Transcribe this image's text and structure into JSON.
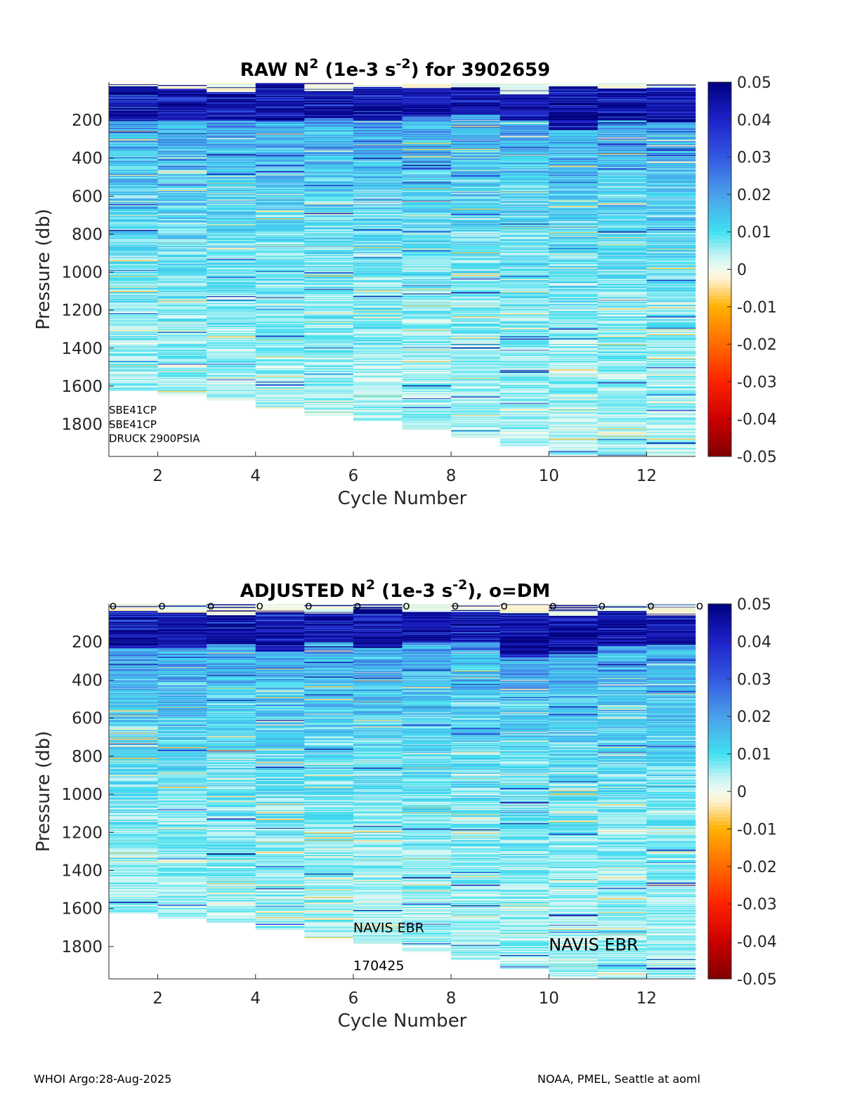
{
  "figure": {
    "footer_left": "WHOI Argo:28-Aug-2025",
    "footer_right": "NOAA, PMEL, Seattle at aoml"
  },
  "colors": {
    "cmap_stops": [
      {
        "v": -0.05,
        "c": "#7f0000"
      },
      {
        "v": -0.04,
        "c": "#cc0000"
      },
      {
        "v": -0.03,
        "c": "#ff2200"
      },
      {
        "v": -0.02,
        "c": "#ff6a00"
      },
      {
        "v": -0.01,
        "c": "#ffb000"
      },
      {
        "v": -0.003,
        "c": "#fff0c8"
      },
      {
        "v": 0.0,
        "c": "#f4fbf0"
      },
      {
        "v": 0.004,
        "c": "#bff3f3"
      },
      {
        "v": 0.01,
        "c": "#40e0f0"
      },
      {
        "v": 0.02,
        "c": "#4aa0ea"
      },
      {
        "v": 0.03,
        "c": "#3358e0"
      },
      {
        "v": 0.04,
        "c": "#1e22c8"
      },
      {
        "v": 0.05,
        "c": "#000080"
      }
    ]
  },
  "chart_data": [
    {
      "type": "heatmap",
      "title_prefix": "RAW N",
      "title_sup1": "2",
      "title_mid": " (1e-3 s",
      "title_sup2": "-2",
      "title_suffix": ") for 3902659",
      "xlabel": "Cycle Number",
      "ylabel": "Pressure (db)",
      "xlim": [
        1,
        13
      ],
      "ylim": [
        1970,
        0
      ],
      "xticks": [
        2,
        4,
        6,
        8,
        10,
        12
      ],
      "yticks": [
        200,
        400,
        600,
        800,
        1000,
        1200,
        1400,
        1600,
        1800
      ],
      "clim": [
        -0.05,
        0.05
      ],
      "cticks": [
        0.05,
        0.04,
        0.03,
        0.02,
        0.01,
        0,
        -0.01,
        -0.02,
        -0.03,
        -0.04,
        -0.05
      ],
      "cycles": [
        1,
        2,
        3,
        4,
        5,
        6,
        7,
        8,
        9,
        10,
        11,
        12
      ],
      "top_pressure": [
        5,
        15,
        5,
        5,
        5,
        15,
        5,
        5,
        5,
        5,
        5,
        5
      ],
      "max_pressure": [
        1625,
        1650,
        1675,
        1715,
        1755,
        1785,
        1830,
        1870,
        1915,
        1960,
        1965,
        1965
      ],
      "surface_layer_bottom": [
        25,
        30,
        50,
        5,
        50,
        20,
        30,
        40,
        60,
        20,
        30,
        25
      ],
      "strong_layer_bottom": [
        200,
        200,
        200,
        200,
        190,
        200,
        180,
        170,
        200,
        250,
        200,
        210
      ],
      "dm_markers": false,
      "annotations": [
        {
          "text": "SBE41CP",
          "x": 1,
          "y": 1725,
          "size": 15
        },
        {
          "text": "SBE41CP",
          "x": 1,
          "y": 1800,
          "size": 15
        },
        {
          "text": "DRUCK 2900PSIA",
          "x": 1,
          "y": 1875,
          "size": 15
        }
      ]
    },
    {
      "type": "heatmap",
      "title_prefix": "ADJUSTED N",
      "title_sup1": "2",
      "title_mid": " (1e-3 s",
      "title_sup2": "-2",
      "title_suffix": "), o=DM",
      "xlabel": "Cycle Number",
      "ylabel": "Pressure (db)",
      "xlim": [
        1,
        13
      ],
      "ylim": [
        1970,
        0
      ],
      "xticks": [
        2,
        4,
        6,
        8,
        10,
        12
      ],
      "yticks": [
        200,
        400,
        600,
        800,
        1000,
        1200,
        1400,
        1600,
        1800
      ],
      "clim": [
        -0.05,
        0.05
      ],
      "cticks": [
        0.05,
        0.04,
        0.03,
        0.02,
        0.01,
        0,
        -0.01,
        -0.02,
        -0.03,
        -0.04,
        -0.05
      ],
      "cycles": [
        1,
        2,
        3,
        4,
        5,
        6,
        7,
        8,
        9,
        10,
        11,
        12
      ],
      "top_pressure": [
        0,
        0,
        0,
        0,
        0,
        0,
        0,
        0,
        0,
        0,
        0,
        0
      ],
      "max_pressure": [
        1625,
        1650,
        1675,
        1715,
        1755,
        1785,
        1830,
        1870,
        1915,
        1960,
        1965,
        1965
      ],
      "surface_layer_bottom": [
        35,
        50,
        60,
        40,
        50,
        25,
        40,
        40,
        50,
        60,
        40,
        60
      ],
      "strong_layer_bottom": [
        230,
        230,
        210,
        250,
        200,
        230,
        200,
        200,
        280,
        260,
        220,
        210
      ],
      "dm_markers": true,
      "dm_marker_glyph": "o",
      "dm_marker_x": [
        1,
        2,
        3,
        4,
        5,
        6,
        7,
        8,
        9,
        10,
        11,
        12,
        13
      ],
      "annotations": [
        {
          "text": "NAVIS EBR",
          "x": 6,
          "y": 1700,
          "size": 19
        },
        {
          "text": "170425",
          "x": 6,
          "y": 1900,
          "size": 19
        },
        {
          "text": "NAVIS EBR",
          "x": 10,
          "y": 1790,
          "size": 24
        }
      ]
    }
  ]
}
